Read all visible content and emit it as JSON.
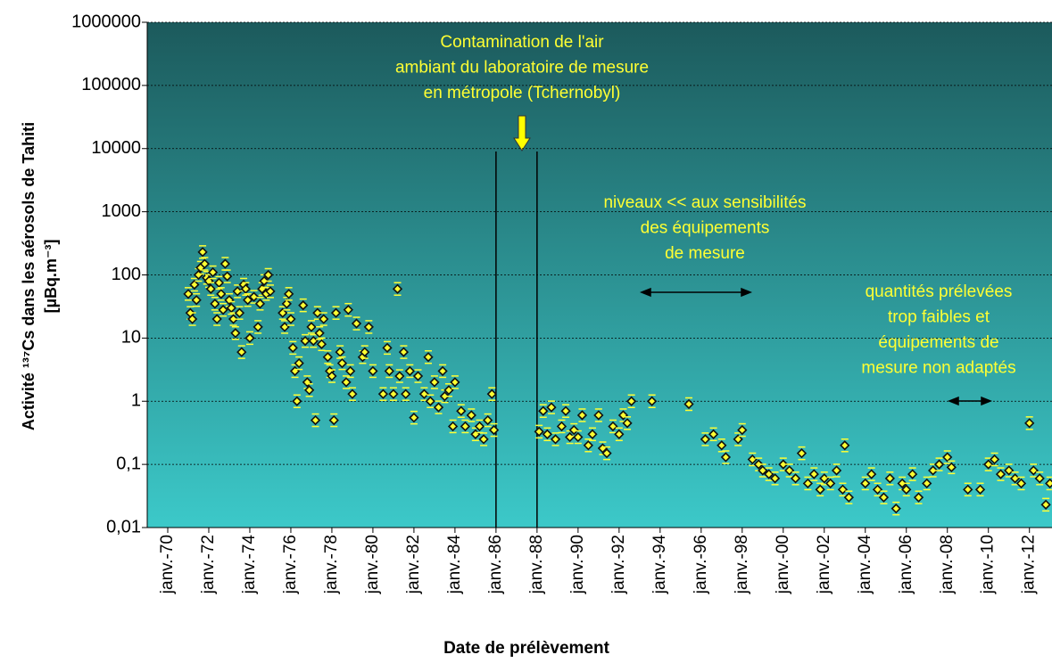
{
  "chart_data": {
    "type": "scatter",
    "y_label": [
      "Activité ¹³⁷Cs dans les aérosols de Tahiti",
      "[µBq.m⁻³]"
    ],
    "x_label": "Date de prélèvement",
    "log_y": true,
    "grid": true,
    "color": "#ffff33",
    "xlim": [
      1969.0,
      2013.1
    ],
    "ylim": [
      0.01,
      1000000
    ],
    "xticks": [
      {
        "value": 1970,
        "label": "janv.-70"
      },
      {
        "value": 1972,
        "label": "janv.-72"
      },
      {
        "value": 1974,
        "label": "janv.-74"
      },
      {
        "value": 1976,
        "label": "janv.-76"
      },
      {
        "value": 1978,
        "label": "janv.-78"
      },
      {
        "value": 1980,
        "label": "janv.-80"
      },
      {
        "value": 1982,
        "label": "janv.-82"
      },
      {
        "value": 1984,
        "label": "janv.-84"
      },
      {
        "value": 1986,
        "label": "janv.-86"
      },
      {
        "value": 1988,
        "label": "janv.-88"
      },
      {
        "value": 1990,
        "label": "janv.-90"
      },
      {
        "value": 1992,
        "label": "janv.-92"
      },
      {
        "value": 1994,
        "label": "janv.-94"
      },
      {
        "value": 1996,
        "label": "janv.-96"
      },
      {
        "value": 1998,
        "label": "janv.-98"
      },
      {
        "value": 2000,
        "label": "janv.-00"
      },
      {
        "value": 2002,
        "label": "janv.-02"
      },
      {
        "value": 2004,
        "label": "janv.-04"
      },
      {
        "value": 2006,
        "label": "janv.-06"
      },
      {
        "value": 2008,
        "label": "janv.-08"
      },
      {
        "value": 2010,
        "label": "janv.-10"
      },
      {
        "value": 2012,
        "label": "janv.-12"
      }
    ],
    "yticks": [
      {
        "value": 0.01,
        "label": "0,01"
      },
      {
        "value": 0.1,
        "label": "0,1"
      },
      1,
      10,
      100,
      1000,
      10000,
      100000,
      1000000
    ],
    "vlines": [
      1986,
      1988
    ],
    "annotations": [
      {
        "lines": [
          "Contamination de l'air",
          "ambiant du laboratoire de mesure",
          "en métropole (Tchernobyl)"
        ]
      },
      {
        "lines": [
          "niveaux << aux sensibilités",
          "des équipements",
          "de mesure"
        ]
      },
      {
        "lines": [
          "quantités prélevées",
          "trop faibles et",
          "équipements de",
          "mesure non adaptés"
        ]
      }
    ],
    "x": [
      1971.0,
      1971.1,
      1971.2,
      1971.3,
      1971.4,
      1971.5,
      1971.6,
      1971.7,
      1971.8,
      1971.9,
      1972.0,
      1972.1,
      1972.2,
      1972.3,
      1972.4,
      1972.5,
      1972.6,
      1972.7,
      1972.8,
      1972.9,
      1973.0,
      1973.1,
      1973.2,
      1973.3,
      1973.4,
      1973.5,
      1973.6,
      1973.7,
      1973.8,
      1973.9,
      1974.0,
      1974.2,
      1974.4,
      1974.5,
      1974.6,
      1974.7,
      1974.8,
      1974.9,
      1975.0,
      1975.6,
      1975.7,
      1975.8,
      1975.9,
      1976.0,
      1976.1,
      1976.2,
      1976.3,
      1976.4,
      1976.6,
      1976.7,
      1976.8,
      1976.9,
      1977.0,
      1977.1,
      1977.2,
      1977.3,
      1977.4,
      1977.5,
      1977.6,
      1977.8,
      1977.9,
      1978.0,
      1978.1,
      1978.2,
      1978.4,
      1978.5,
      1978.7,
      1978.8,
      1978.9,
      1979.0,
      1979.2,
      1979.5,
      1979.6,
      1979.8,
      1980.0,
      1980.5,
      1980.7,
      1980.8,
      1981.0,
      1981.2,
      1981.3,
      1981.5,
      1981.6,
      1981.8,
      1982.0,
      1982.2,
      1982.5,
      1982.7,
      1982.8,
      1983.0,
      1983.2,
      1983.4,
      1983.5,
      1983.7,
      1983.9,
      1984.0,
      1984.3,
      1984.5,
      1984.8,
      1985.0,
      1985.2,
      1985.4,
      1985.6,
      1985.8,
      1985.9,
      1988.1,
      1988.3,
      1988.5,
      1988.7,
      1988.9,
      1989.2,
      1989.4,
      1989.6,
      1989.8,
      1990.0,
      1990.2,
      1990.5,
      1990.7,
      1991.0,
      1991.2,
      1991.4,
      1991.7,
      1992.0,
      1992.2,
      1992.4,
      1992.6,
      1993.6,
      1995.4,
      1996.2,
      1996.6,
      1997.0,
      1997.2,
      1997.8,
      1998.0,
      1998.5,
      1998.8,
      1999.0,
      1999.3,
      1999.6,
      2000.0,
      2000.3,
      2000.6,
      2000.9,
      2001.2,
      2001.5,
      2001.8,
      2002.0,
      2002.3,
      2002.6,
      2002.9,
      2003.0,
      2003.2,
      2004.0,
      2004.3,
      2004.6,
      2004.9,
      2005.2,
      2005.5,
      2005.8,
      2006.0,
      2006.3,
      2006.6,
      2007.0,
      2007.3,
      2007.6,
      2008.0,
      2008.2,
      2009.0,
      2009.6,
      2010.0,
      2010.3,
      2010.6,
      2011.0,
      2011.3,
      2011.6,
      2012.0,
      2012.2,
      2012.5,
      2012.8,
      2013.0
    ],
    "values": [
      50,
      25,
      20,
      70,
      40,
      100,
      130,
      230,
      150,
      90,
      80,
      60,
      110,
      35,
      20,
      75,
      50,
      28,
      150,
      95,
      40,
      30,
      20,
      12,
      55,
      25,
      6,
      70,
      60,
      40,
      10,
      45,
      15,
      35,
      60,
      80,
      50,
      100,
      55,
      25,
      15,
      35,
      50,
      20,
      7,
      3,
      1,
      4,
      33,
      9,
      2,
      1.5,
      15,
      9,
      0.5,
      25,
      12,
      8,
      20,
      5,
      3,
      2.5,
      0.5,
      25,
      6,
      4,
      2,
      28,
      3,
      1.3,
      17,
      5,
      6,
      15,
      3,
      1.3,
      7,
      3,
      1.3,
      60,
      2.5,
      6,
      1.3,
      3,
      0.55,
      2.5,
      1.3,
      5,
      1,
      2,
      0.8,
      3,
      1.2,
      1.5,
      0.4,
      2,
      0.7,
      0.4,
      0.6,
      0.3,
      0.4,
      0.25,
      0.5,
      1.3,
      0.35,
      0.33,
      0.7,
      0.3,
      0.8,
      0.25,
      0.4,
      0.7,
      0.27,
      0.35,
      0.27,
      0.6,
      0.2,
      0.3,
      0.6,
      0.18,
      0.15,
      0.4,
      0.3,
      0.6,
      0.45,
      1.0,
      1.0,
      0.9,
      0.25,
      0.3,
      0.2,
      0.13,
      0.25,
      0.35,
      0.12,
      0.1,
      0.08,
      0.07,
      0.06,
      0.1,
      0.08,
      0.06,
      0.15,
      0.05,
      0.07,
      0.04,
      0.06,
      0.05,
      0.08,
      0.04,
      0.2,
      0.03,
      0.05,
      0.07,
      0.04,
      0.03,
      0.06,
      0.02,
      0.05,
      0.04,
      0.07,
      0.03,
      0.05,
      0.08,
      0.1,
      0.13,
      0.09,
      0.04,
      0.04,
      0.1,
      0.12,
      0.07,
      0.08,
      0.06,
      0.05,
      0.45,
      0.08,
      0.06,
      0.023,
      0.05
    ]
  }
}
